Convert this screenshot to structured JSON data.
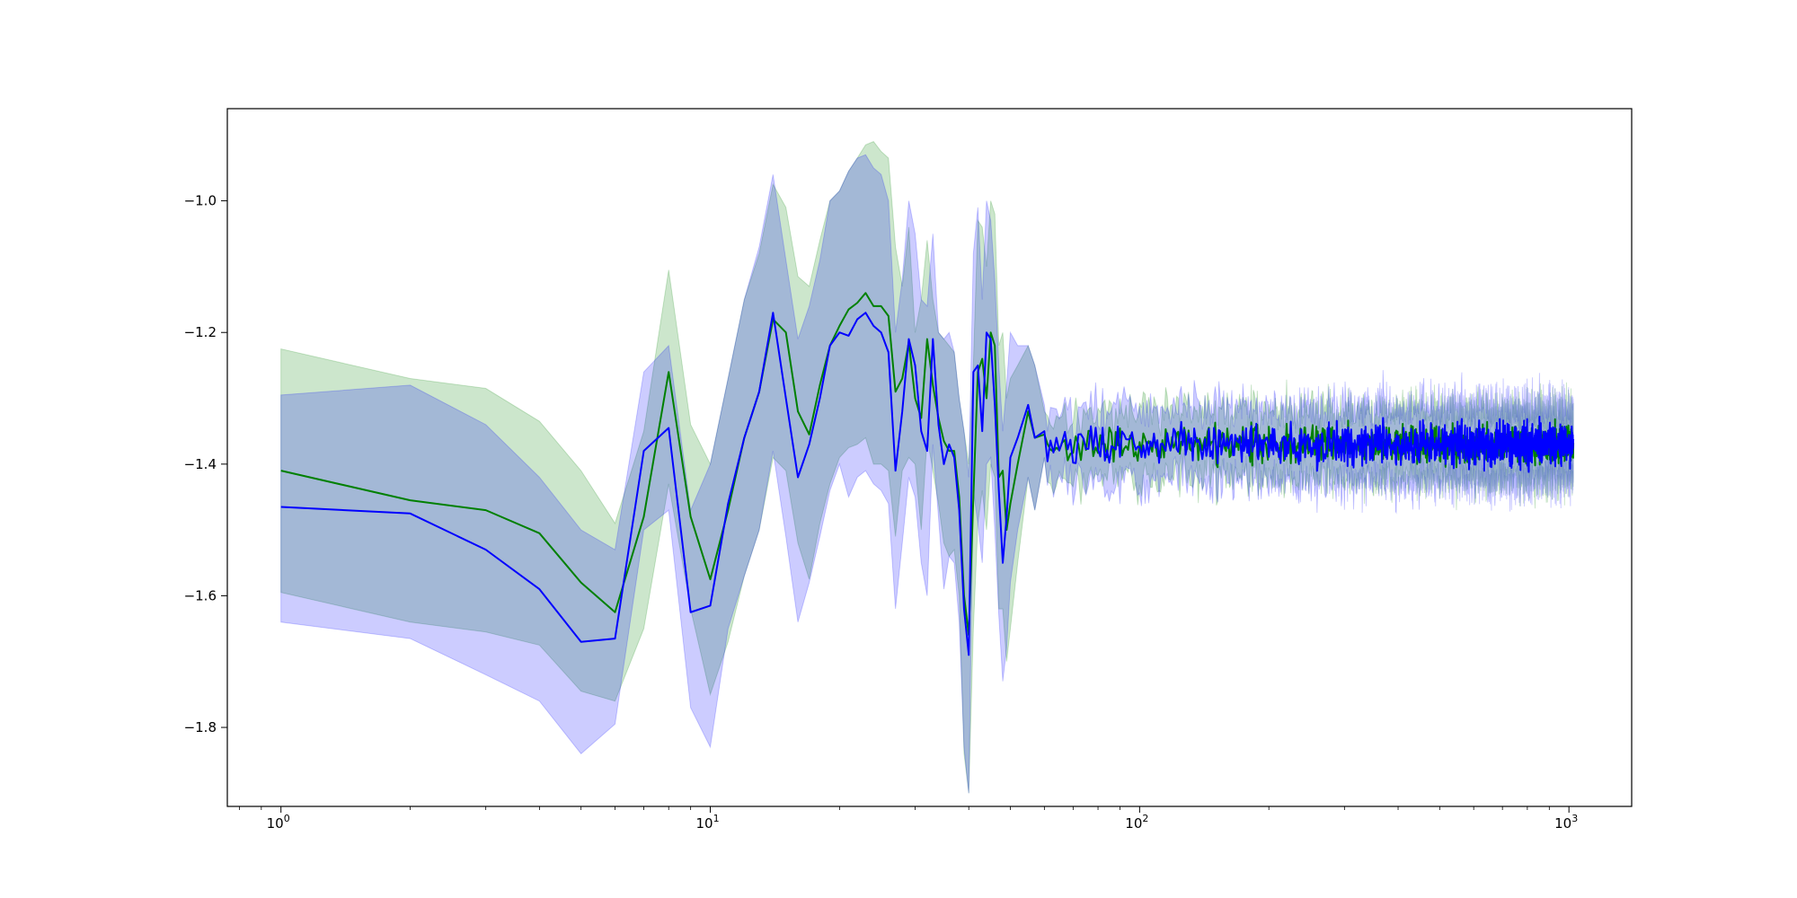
{
  "chart_data": {
    "type": "line",
    "title": "",
    "xlabel": "",
    "ylabel": "",
    "xscale": "log",
    "xlim": [
      0.75,
      1400
    ],
    "ylim": [
      -1.92,
      -0.86
    ],
    "grid": false,
    "legend": "none",
    "x_ticks": [
      {
        "value": 1,
        "label": "10",
        "exp": "0"
      },
      {
        "value": 10,
        "label": "10",
        "exp": "1"
      },
      {
        "value": 100,
        "label": "10",
        "exp": "2"
      },
      {
        "value": 1000,
        "label": "10",
        "exp": "3"
      }
    ],
    "y_ticks": [
      {
        "value": -1.0,
        "label": "−1.0"
      },
      {
        "value": -1.2,
        "label": "−1.2"
      },
      {
        "value": -1.4,
        "label": "−1.4"
      },
      {
        "value": -1.6,
        "label": "−1.6"
      },
      {
        "value": -1.8,
        "label": "−1.8"
      }
    ],
    "series": [
      {
        "color": "#008000",
        "band_color": "#008000",
        "band_opacity": 0.2,
        "x": [
          1,
          2,
          3,
          4,
          5,
          6,
          7,
          8,
          9,
          10,
          11,
          12,
          13,
          14,
          15,
          16,
          17,
          18,
          19,
          20,
          21,
          22,
          23,
          24,
          25,
          26,
          27,
          28,
          29,
          30,
          31,
          32,
          33,
          34,
          35,
          36,
          37,
          38,
          39,
          40,
          41,
          42,
          43,
          44,
          45,
          46,
          47,
          48,
          49,
          50,
          52,
          55,
          57,
          60
        ],
        "values": [
          -1.41,
          -1.455,
          -1.47,
          -1.505,
          -1.58,
          -1.625,
          -1.48,
          -1.26,
          -1.48,
          -1.575,
          -1.47,
          -1.36,
          -1.29,
          -1.18,
          -1.2,
          -1.32,
          -1.355,
          -1.28,
          -1.22,
          -1.19,
          -1.165,
          -1.155,
          -1.14,
          -1.16,
          -1.16,
          -1.175,
          -1.29,
          -1.27,
          -1.215,
          -1.3,
          -1.33,
          -1.21,
          -1.28,
          -1.33,
          -1.365,
          -1.38,
          -1.38,
          -1.45,
          -1.6,
          -1.66,
          -1.45,
          -1.26,
          -1.24,
          -1.3,
          -1.2,
          -1.22,
          -1.42,
          -1.41,
          -1.5,
          -1.46,
          -1.4,
          -1.32,
          -1.36,
          -1.355
        ],
        "upper": [
          -1.225,
          -1.27,
          -1.285,
          -1.335,
          -1.41,
          -1.49,
          -1.35,
          -1.105,
          -1.34,
          -1.4,
          -1.27,
          -1.15,
          -1.08,
          -0.975,
          -1.01,
          -1.115,
          -1.13,
          -1.06,
          -1.0,
          -0.985,
          -0.955,
          -0.935,
          -0.915,
          -0.91,
          -0.925,
          -0.935,
          -1.07,
          -1.13,
          -1.04,
          -1.2,
          -1.15,
          -1.06,
          -1.15,
          -1.2,
          -1.21,
          -1.22,
          -1.23,
          -1.3,
          -1.35,
          -1.4,
          -1.25,
          -1.03,
          -1.04,
          -1.1,
          -1.0,
          -1.02,
          -1.22,
          -1.2,
          -1.3,
          -1.27,
          -1.25,
          -1.22,
          -1.25,
          -1.32
        ],
        "lower": [
          -1.595,
          -1.64,
          -1.655,
          -1.675,
          -1.745,
          -1.76,
          -1.65,
          -1.43,
          -1.62,
          -1.75,
          -1.67,
          -1.57,
          -1.5,
          -1.39,
          -1.41,
          -1.52,
          -1.575,
          -1.49,
          -1.43,
          -1.39,
          -1.375,
          -1.37,
          -1.36,
          -1.4,
          -1.4,
          -1.41,
          -1.51,
          -1.41,
          -1.39,
          -1.4,
          -1.5,
          -1.36,
          -1.41,
          -1.46,
          -1.52,
          -1.54,
          -1.53,
          -1.6,
          -1.84,
          -1.9,
          -1.65,
          -1.49,
          -1.44,
          -1.5,
          -1.4,
          -1.42,
          -1.62,
          -1.62,
          -1.7,
          -1.65,
          -1.55,
          -1.42,
          -1.47,
          -1.39
        ],
        "tail": {
          "x_start": 60,
          "x_end": 1024,
          "mean": -1.37,
          "noise": 0.014,
          "band_halfwidth": 0.05,
          "band_noise": 0.018,
          "seed": 17
        }
      },
      {
        "color": "#0000ff",
        "band_color": "#0000ff",
        "band_opacity": 0.2,
        "x": [
          1,
          2,
          3,
          4,
          5,
          6,
          7,
          8,
          9,
          10,
          11,
          12,
          13,
          14,
          15,
          16,
          17,
          18,
          19,
          20,
          21,
          22,
          23,
          24,
          25,
          26,
          27,
          28,
          29,
          30,
          31,
          32,
          33,
          34,
          35,
          36,
          37,
          38,
          39,
          40,
          41,
          42,
          43,
          44,
          45,
          46,
          47,
          48,
          49,
          50,
          52,
          55,
          57,
          60
        ],
        "values": [
          -1.465,
          -1.475,
          -1.53,
          -1.59,
          -1.67,
          -1.665,
          -1.38,
          -1.345,
          -1.625,
          -1.615,
          -1.46,
          -1.36,
          -1.29,
          -1.17,
          -1.3,
          -1.42,
          -1.37,
          -1.3,
          -1.22,
          -1.2,
          -1.205,
          -1.18,
          -1.17,
          -1.19,
          -1.2,
          -1.23,
          -1.41,
          -1.32,
          -1.21,
          -1.25,
          -1.35,
          -1.38,
          -1.21,
          -1.34,
          -1.4,
          -1.37,
          -1.39,
          -1.47,
          -1.62,
          -1.69,
          -1.26,
          -1.25,
          -1.35,
          -1.2,
          -1.21,
          -1.31,
          -1.44,
          -1.55,
          -1.48,
          -1.39,
          -1.36,
          -1.31,
          -1.36,
          -1.35
        ],
        "upper": [
          -1.295,
          -1.28,
          -1.34,
          -1.42,
          -1.5,
          -1.53,
          -1.26,
          -1.22,
          -1.47,
          -1.4,
          -1.27,
          -1.15,
          -1.07,
          -0.96,
          -1.09,
          -1.21,
          -1.16,
          -1.09,
          -1.0,
          -0.985,
          -0.955,
          -0.935,
          -0.93,
          -0.95,
          -0.96,
          -1.0,
          -1.2,
          -1.12,
          -1.0,
          -1.05,
          -1.15,
          -1.16,
          -1.05,
          -1.2,
          -1.21,
          -1.2,
          -1.23,
          -1.3,
          -1.35,
          -1.42,
          -1.08,
          -1.01,
          -1.15,
          -1.0,
          -1.03,
          -1.12,
          -1.25,
          -1.35,
          -1.28,
          -1.2,
          -1.22,
          -1.22,
          -1.25,
          -1.31
        ],
        "lower": [
          -1.64,
          -1.665,
          -1.72,
          -1.76,
          -1.84,
          -1.795,
          -1.5,
          -1.47,
          -1.77,
          -1.83,
          -1.65,
          -1.57,
          -1.5,
          -1.38,
          -1.51,
          -1.64,
          -1.58,
          -1.51,
          -1.44,
          -1.4,
          -1.45,
          -1.42,
          -1.41,
          -1.43,
          -1.44,
          -1.46,
          -1.62,
          -1.52,
          -1.42,
          -1.45,
          -1.55,
          -1.6,
          -1.37,
          -1.48,
          -1.59,
          -1.54,
          -1.55,
          -1.64,
          -1.83,
          -1.9,
          -1.44,
          -1.49,
          -1.55,
          -1.4,
          -1.39,
          -1.5,
          -1.63,
          -1.73,
          -1.68,
          -1.58,
          -1.5,
          -1.42,
          -1.47,
          -1.39
        ],
        "tail": {
          "x_start": 60,
          "x_end": 1024,
          "mean": -1.37,
          "noise": 0.016,
          "band_halfwidth": 0.055,
          "band_noise": 0.02,
          "seed": 43
        }
      }
    ]
  }
}
